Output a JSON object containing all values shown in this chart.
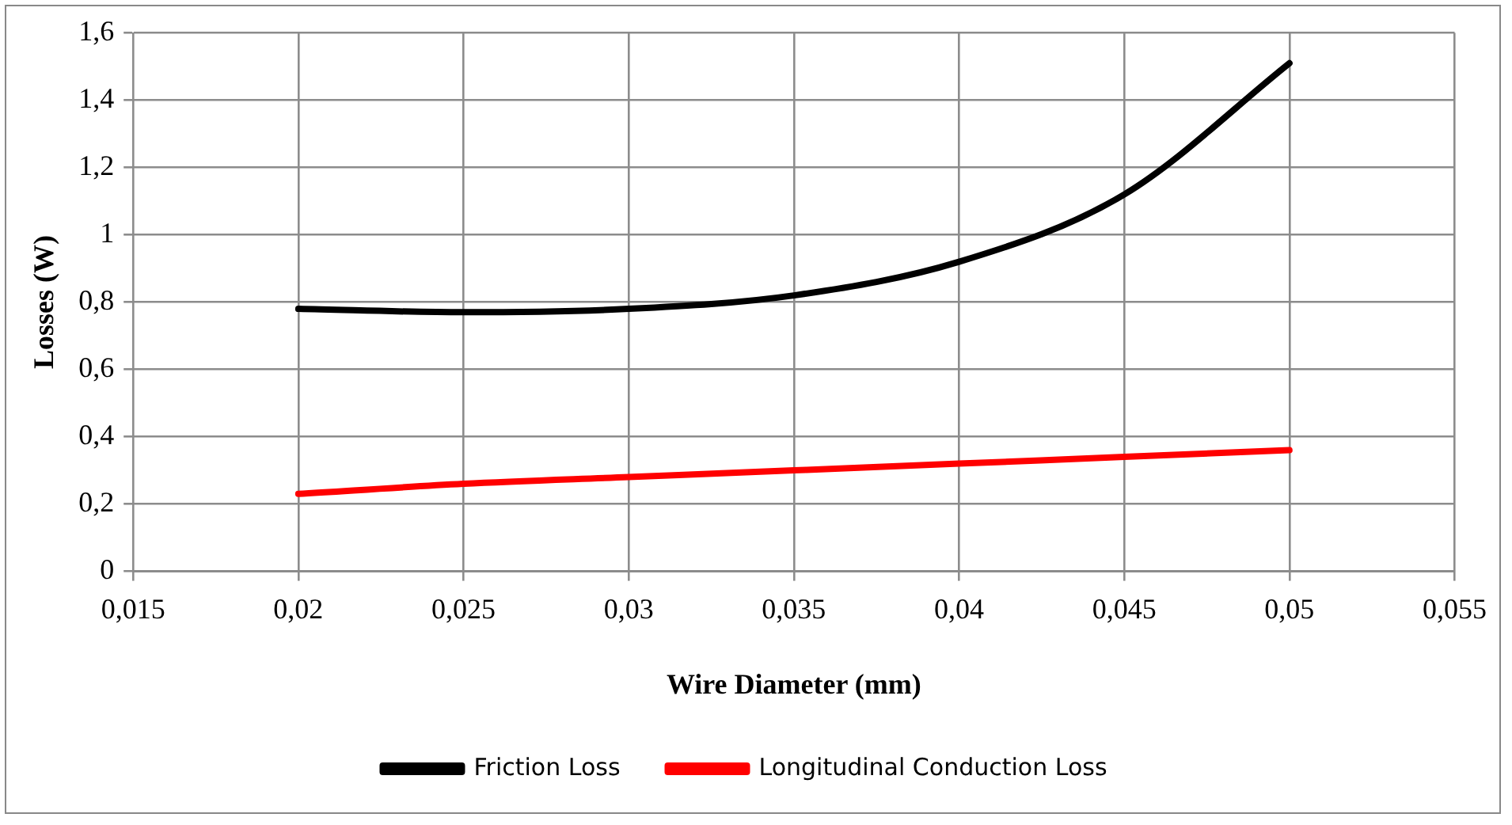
{
  "chart_data": {
    "type": "line",
    "xlabel": "Wire Diameter (mm)",
    "ylabel": "Losses (W)",
    "x": [
      0.02,
      0.025,
      0.03,
      0.035,
      0.04,
      0.045,
      0.05
    ],
    "series": [
      {
        "name": "Friction Loss",
        "color": "#000000",
        "values": [
          0.78,
          0.77,
          0.78,
          0.82,
          0.92,
          1.12,
          1.51
        ]
      },
      {
        "name": "Longitudinal Conduction Loss",
        "color": "#ff0000",
        "values": [
          0.23,
          0.26,
          0.28,
          0.3,
          0.32,
          0.34,
          0.36
        ]
      }
    ],
    "xlim": [
      0.015,
      0.055
    ],
    "xticks": [
      {
        "value": 0.015,
        "label": "0,015"
      },
      {
        "value": 0.02,
        "label": "0,02"
      },
      {
        "value": 0.025,
        "label": "0,025"
      },
      {
        "value": 0.03,
        "label": "0,03"
      },
      {
        "value": 0.035,
        "label": "0,035"
      },
      {
        "value": 0.04,
        "label": "0,04"
      },
      {
        "value": 0.045,
        "label": "0,045"
      },
      {
        "value": 0.05,
        "label": "0,05"
      },
      {
        "value": 0.055,
        "label": "0,055"
      }
    ],
    "ylim": [
      0,
      1.6
    ],
    "yticks": [
      0,
      {
        "value": 0.2,
        "label": "0,2"
      },
      {
        "value": 0.4,
        "label": "0,4"
      },
      {
        "value": 0.6,
        "label": "0,6"
      },
      {
        "value": 0.8,
        "label": "0,8"
      },
      1,
      {
        "value": 1.2,
        "label": "1,2"
      },
      {
        "value": 1.4,
        "label": "1,4"
      },
      {
        "value": 1.6,
        "label": "1,6"
      }
    ],
    "grid": true,
    "legend": "bottom",
    "marker": "none",
    "line_style": "solid"
  }
}
